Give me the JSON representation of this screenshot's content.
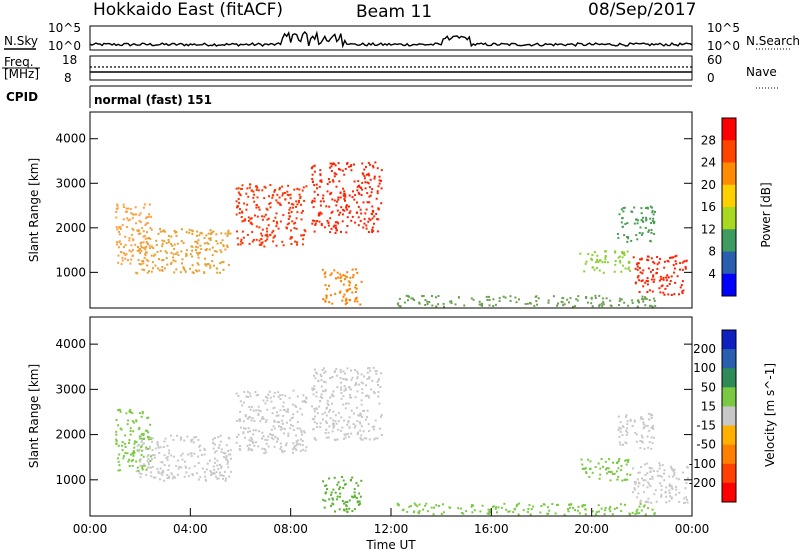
{
  "header": {
    "title": "Hokkaido East (fitACF)",
    "beam": "Beam 11",
    "date": "08/Sep/2017"
  },
  "top_panel": {
    "left_label": "N.Sky",
    "right_label": "N.Search",
    "left_ticks": [
      "10^5",
      "10^0"
    ],
    "right_ticks": [
      "10^5",
      "10^0"
    ]
  },
  "freq_panel": {
    "left_label_1": "Freq.",
    "left_label_2": "[MHz]",
    "left_ticks": [
      "18",
      "8"
    ],
    "right_label": "Nave",
    "right_ticks": [
      "60",
      "0"
    ]
  },
  "cpid_panel": {
    "label": "CPID",
    "text": "normal (fast) 151"
  },
  "chart_data": [
    {
      "type": "heatmap",
      "name": "power",
      "ylabel": "Slant Range [km]",
      "yticks": [
        "4000",
        "3000",
        "2000",
        "1000"
      ],
      "y_values": [
        4000,
        3000,
        2000,
        1000
      ],
      "ylim": [
        200,
        4600
      ],
      "xlim": [
        "00:00",
        "24:00"
      ],
      "colorbar": {
        "label": "Power [dB]",
        "ticks": [
          "28",
          "24",
          "20",
          "16",
          "12",
          "8",
          "4"
        ],
        "colors": [
          "#ff0000",
          "#ff4400",
          "#ff8c00",
          "#ffd000",
          "#a8d820",
          "#3e9c60",
          "#2a5fb0",
          "#0000ff"
        ]
      },
      "regions": [
        {
          "t": [
            1.0,
            2.4
          ],
          "r": [
            1200,
            2600
          ],
          "color": "#ffa040"
        },
        {
          "t": [
            1.8,
            5.6
          ],
          "r": [
            1000,
            2000
          ],
          "color": "#e8a030"
        },
        {
          "t": [
            5.8,
            8.6
          ],
          "r": [
            1600,
            3000
          ],
          "color": "#ff3300"
        },
        {
          "t": [
            8.8,
            11.6
          ],
          "r": [
            1900,
            3500
          ],
          "color": "#ff2200"
        },
        {
          "t": [
            9.2,
            10.8
          ],
          "r": [
            300,
            1100
          ],
          "color": "#ff8000"
        },
        {
          "t": [
            12.2,
            22.5
          ],
          "r": [
            250,
            500
          ],
          "color": "#6aa050"
        },
        {
          "t": [
            19.5,
            21.5
          ],
          "r": [
            1000,
            1500
          ],
          "color": "#8ad030"
        },
        {
          "t": [
            21.6,
            23.8
          ],
          "r": [
            500,
            1400
          ],
          "color": "#ff2000"
        },
        {
          "t": [
            21.0,
            22.5
          ],
          "r": [
            1700,
            2500
          ],
          "color": "#4a9c50"
        }
      ]
    },
    {
      "type": "heatmap",
      "name": "velocity",
      "ylabel": "Slant Range [km]",
      "xlabel": "Time UT",
      "xticks": [
        "00:00",
        "04:00",
        "08:00",
        "12:00",
        "16:00",
        "20:00",
        "00:00"
      ],
      "x_values": [
        0,
        4,
        8,
        12,
        16,
        20,
        24
      ],
      "yticks": [
        "4000",
        "3000",
        "2000",
        "1000"
      ],
      "y_values": [
        4000,
        3000,
        2000,
        1000
      ],
      "ylim": [
        200,
        4600
      ],
      "colorbar": {
        "label": "Velocity [m s^-1]",
        "ticks": [
          "200",
          "100",
          "50",
          "15",
          "-15",
          "-50",
          "-100",
          "-200"
        ],
        "colors": [
          "#1020c0",
          "#2a5fb0",
          "#2e8b57",
          "#7ac943",
          "#c8c8c8",
          "#ffb000",
          "#ff8000",
          "#ff4000",
          "#ff0000"
        ]
      },
      "regions": [
        {
          "t": [
            1.0,
            2.4
          ],
          "r": [
            1200,
            2600
          ],
          "color": "#7ac943"
        },
        {
          "t": [
            1.8,
            5.6
          ],
          "r": [
            1000,
            2000
          ],
          "color": "#c8c8c8"
        },
        {
          "t": [
            5.8,
            8.6
          ],
          "r": [
            1600,
            3000
          ],
          "color": "#c8c8c8"
        },
        {
          "t": [
            8.8,
            11.6
          ],
          "r": [
            1900,
            3500
          ],
          "color": "#c8c8c8"
        },
        {
          "t": [
            9.2,
            10.8
          ],
          "r": [
            300,
            1100
          ],
          "color": "#5ab030"
        },
        {
          "t": [
            12.2,
            22.5
          ],
          "r": [
            250,
            500
          ],
          "color": "#7ac943"
        },
        {
          "t": [
            19.5,
            21.5
          ],
          "r": [
            1000,
            1500
          ],
          "color": "#7ac943"
        },
        {
          "t": [
            21.6,
            23.8
          ],
          "r": [
            500,
            1400
          ],
          "color": "#c8c8c8"
        },
        {
          "t": [
            21.0,
            22.5
          ],
          "r": [
            1700,
            2500
          ],
          "color": "#c8c8c8"
        }
      ]
    }
  ]
}
